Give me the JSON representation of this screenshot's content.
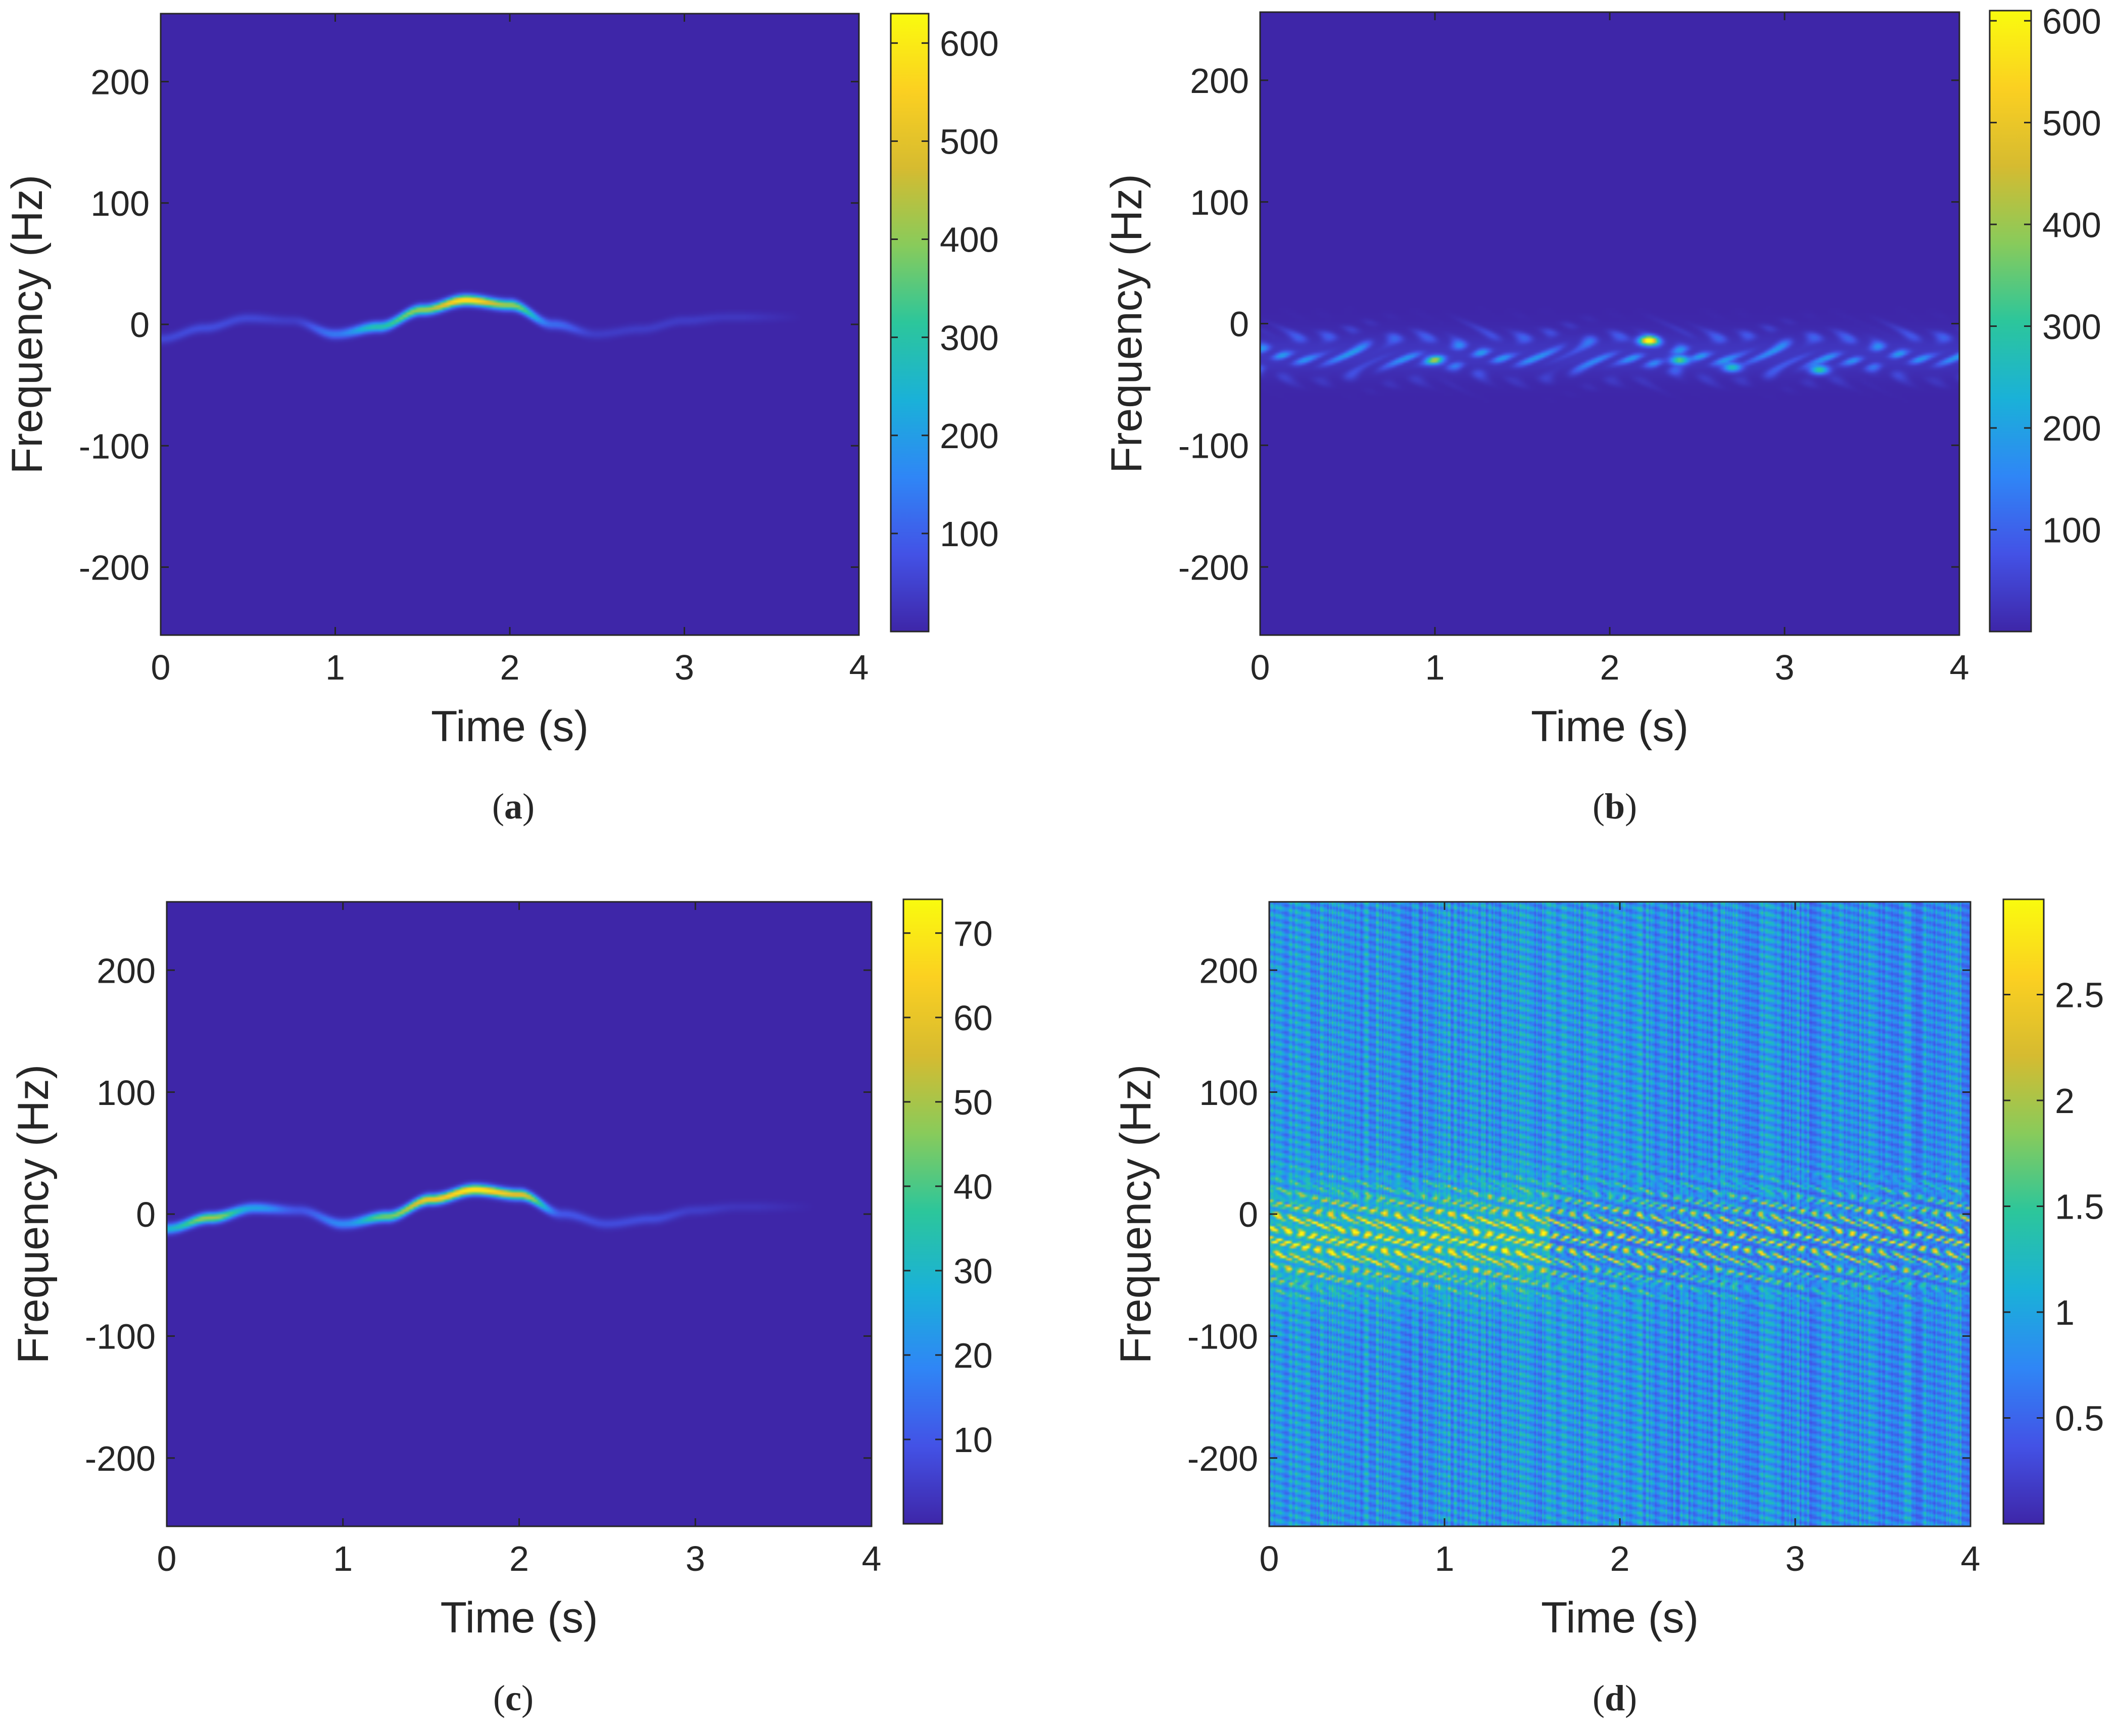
{
  "figure": {
    "colors": {
      "background": "#ffffff",
      "axis": "#262626",
      "plot_base": "#3e26a8",
      "colormap": [
        "#3e26a8",
        "#4352e6",
        "#2f86f6",
        "#1ab1d8",
        "#2cc69b",
        "#88cb5b",
        "#d6bb30",
        "#fbd021",
        "#f9fb0e"
      ]
    }
  },
  "chart_data": [
    {
      "id": "a",
      "type": "heatmap",
      "caption": "a",
      "caption_open": "(",
      "caption_close": ")",
      "xlabel": "Time (s)",
      "ylabel": "Frequency (Hz)",
      "xlim": [
        0,
        4
      ],
      "ylim": [
        -256,
        256
      ],
      "xticks": [
        0,
        1,
        2,
        3,
        4
      ],
      "xtick_labels": [
        "0",
        "1",
        "2",
        "3",
        "4"
      ],
      "yticks": [
        -200,
        -100,
        0,
        100,
        200
      ],
      "ytick_labels": [
        "-200",
        "-100",
        "0",
        "100",
        "200"
      ],
      "colorbar": {
        "range": [
          0,
          630
        ],
        "ticks": [
          100,
          200,
          300,
          400,
          500,
          600
        ],
        "tick_labels": [
          "100",
          "200",
          "300",
          "400",
          "500",
          "600"
        ]
      },
      "pattern": "ridge",
      "ridge": {
        "t": [
          0.0,
          0.25,
          0.5,
          0.75,
          1.0,
          1.25,
          1.5,
          1.75,
          2.0,
          2.25,
          2.5,
          2.75,
          3.0,
          3.25
        ],
        "f": [
          -12,
          -3,
          5,
          3,
          -8,
          -2,
          12,
          20,
          16,
          0,
          -8,
          -4,
          3,
          6
        ],
        "intensity": [
          60,
          70,
          60,
          40,
          140,
          300,
          420,
          600,
          420,
          120,
          40,
          40,
          40,
          30
        ]
      }
    },
    {
      "id": "b",
      "type": "heatmap",
      "caption": "b",
      "caption_open": "(",
      "caption_close": ")",
      "xlabel": "Time (s)",
      "ylabel": "Frequency (Hz)",
      "xlim": [
        0,
        4
      ],
      "ylim": [
        -256,
        256
      ],
      "xticks": [
        0,
        1,
        2,
        3,
        4
      ],
      "xtick_labels": [
        "0",
        "1",
        "2",
        "3",
        "4"
      ],
      "yticks": [
        -200,
        -100,
        0,
        100,
        200
      ],
      "ytick_labels": [
        "-200",
        "-100",
        "0",
        "100",
        "200"
      ],
      "colorbar": {
        "range": [
          0,
          610
        ],
        "ticks": [
          100,
          200,
          300,
          400,
          500,
          600
        ],
        "tick_labels": [
          "100",
          "200",
          "300",
          "400",
          "500",
          "600"
        ]
      },
      "pattern": "cells",
      "band": {
        "t_range": [
          0.0,
          4.0
        ],
        "f_center": -25,
        "f_halfwidth": 22
      },
      "peaks": [
        {
          "t": 2.22,
          "f": -14,
          "value": 600
        },
        {
          "t": 2.4,
          "f": -30,
          "value": 330
        },
        {
          "t": 3.2,
          "f": -38,
          "value": 300
        },
        {
          "t": 1.0,
          "f": -30,
          "value": 260
        },
        {
          "t": 2.7,
          "f": -36,
          "value": 260
        }
      ]
    },
    {
      "id": "c",
      "type": "heatmap",
      "caption": "c",
      "caption_open": "(",
      "caption_close": ")",
      "xlabel": "Time (s)",
      "ylabel": "Frequency (Hz)",
      "xlim": [
        0,
        4
      ],
      "ylim": [
        -256,
        256
      ],
      "xticks": [
        0,
        1,
        2,
        3,
        4
      ],
      "xtick_labels": [
        "0",
        "1",
        "2",
        "3",
        "4"
      ],
      "yticks": [
        -200,
        -100,
        0,
        100,
        200
      ],
      "ytick_labels": [
        "-200",
        "-100",
        "0",
        "100",
        "200"
      ],
      "colorbar": {
        "range": [
          0,
          74
        ],
        "ticks": [
          10,
          20,
          30,
          40,
          50,
          60,
          70
        ],
        "tick_labels": [
          "10",
          "20",
          "30",
          "40",
          "50",
          "60",
          "70"
        ]
      },
      "pattern": "ridge",
      "ridge": {
        "t": [
          0.0,
          0.25,
          0.5,
          0.75,
          1.0,
          1.25,
          1.5,
          1.75,
          2.0,
          2.25,
          2.5,
          2.75,
          3.0,
          3.25
        ],
        "f": [
          -12,
          -3,
          5,
          3,
          -8,
          -2,
          12,
          20,
          16,
          0,
          -8,
          -4,
          3,
          6
        ],
        "intensity": [
          30,
          50,
          25,
          10,
          20,
          45,
          62,
          72,
          60,
          10,
          8,
          8,
          5,
          3
        ]
      }
    },
    {
      "id": "d",
      "type": "heatmap",
      "caption": "d",
      "caption_open": "(",
      "caption_close": ")",
      "xlabel": "Time (s)",
      "ylabel": "Frequency (Hz)",
      "xlim": [
        0,
        4
      ],
      "ylim": [
        -256,
        256
      ],
      "xticks": [
        0,
        1,
        2,
        3,
        4
      ],
      "xtick_labels": [
        "0",
        "1",
        "2",
        "3",
        "4"
      ],
      "yticks": [
        -200,
        -100,
        0,
        100,
        200
      ],
      "ytick_labels": [
        "-200",
        "-100",
        "0",
        "100",
        "200"
      ],
      "colorbar": {
        "range": [
          0,
          2.95
        ],
        "ticks": [
          0.5,
          1,
          1.5,
          2,
          2.5
        ],
        "tick_labels": [
          "0.5",
          "1",
          "1.5",
          "2",
          "2.5"
        ]
      },
      "pattern": "noise",
      "noise_level": 1.3,
      "band": {
        "t_range": [
          0.0,
          4.0
        ],
        "f_center": -20,
        "f_halfwidth": 40
      }
    }
  ]
}
